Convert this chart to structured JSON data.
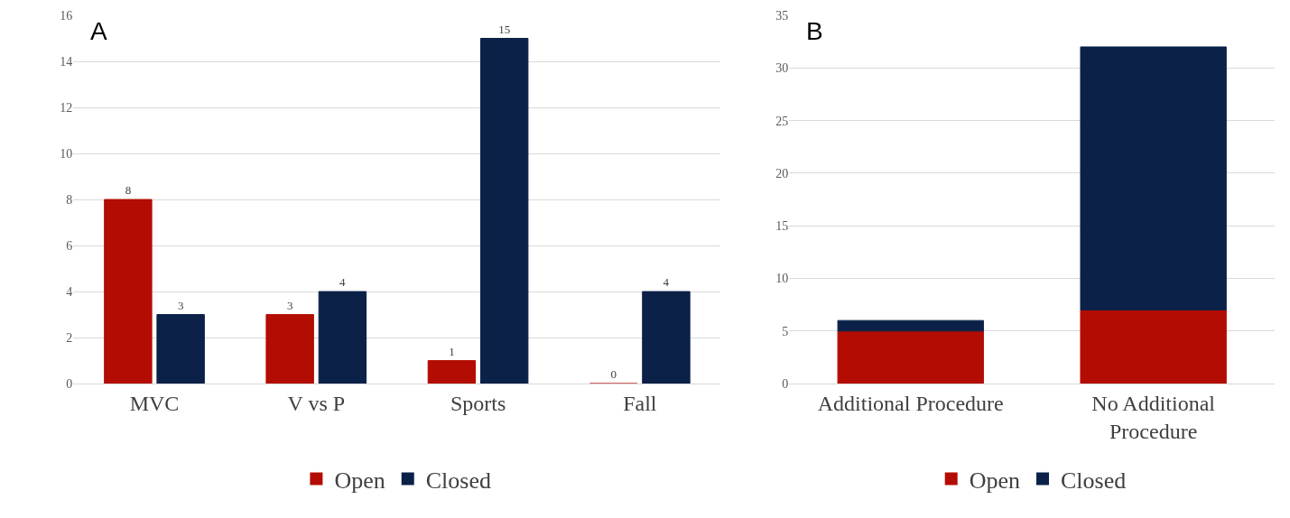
{
  "chart_data": [
    {
      "type": "bar",
      "title": "A",
      "categories": [
        "MVC",
        "V vs P",
        "Sports",
        "Fall"
      ],
      "series": [
        {
          "name": "Open",
          "color": "#b30c02",
          "values": [
            8,
            3,
            1,
            0
          ]
        },
        {
          "name": "Closed",
          "color": "#0b2148",
          "values": [
            3,
            4,
            15,
            4
          ]
        }
      ],
      "ylim": [
        0,
        16
      ],
      "yticks": [
        0,
        2,
        4,
        6,
        8,
        10,
        12,
        14,
        16
      ],
      "grid": "y",
      "legend": "bottom",
      "data_labels": true
    },
    {
      "type": "bar",
      "title": "B",
      "categories": [
        "Additional Procedure",
        "No Additional Procedure"
      ],
      "stacked": true,
      "series": [
        {
          "name": "Open",
          "color": "#b30c02",
          "values": [
            5,
            7
          ]
        },
        {
          "name": "Closed",
          "color": "#0b2148",
          "values": [
            1,
            25
          ]
        }
      ],
      "ylim": [
        0,
        35
      ],
      "yticks": [
        0,
        5,
        10,
        15,
        20,
        25,
        30,
        35
      ],
      "grid": "y",
      "legend": "bottom"
    }
  ]
}
